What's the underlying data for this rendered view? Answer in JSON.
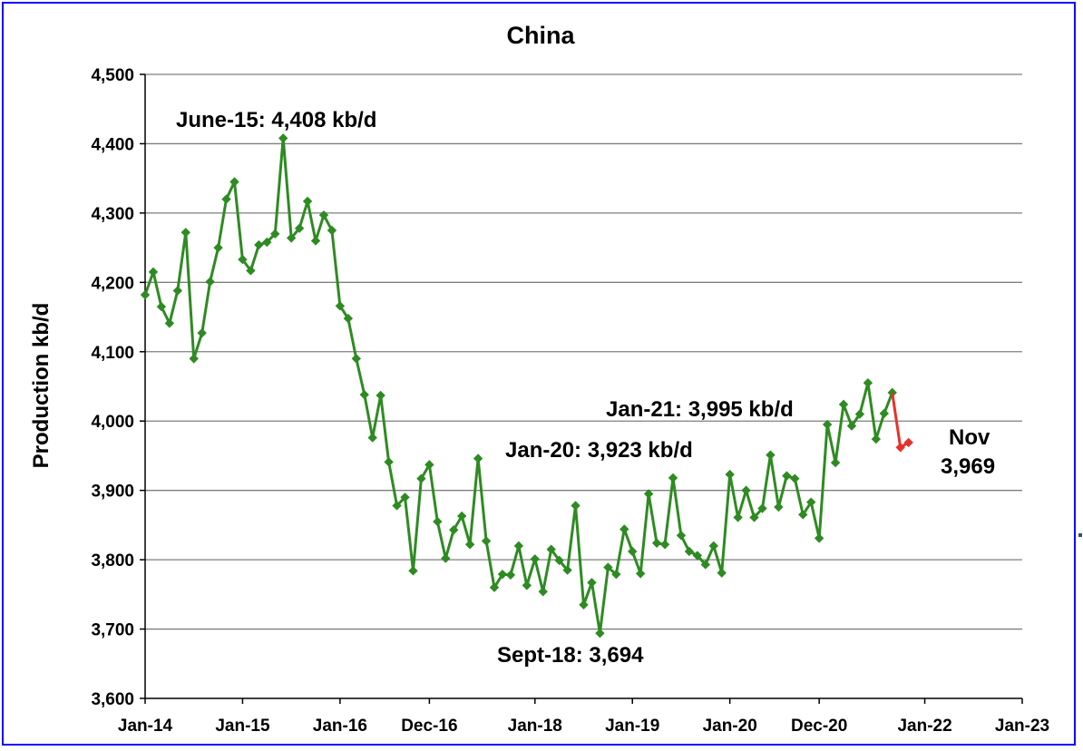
{
  "chart_data": {
    "type": "line",
    "title": "China",
    "ylabel": "Production kb/d",
    "xlabel": "",
    "ylim": [
      3600,
      4500
    ],
    "yticks": [
      3600,
      3700,
      3800,
      3900,
      4000,
      4100,
      4200,
      4300,
      4400,
      4500
    ],
    "ytick_labels": [
      "3,600",
      "3,700",
      "3,800",
      "3,900",
      "4,000",
      "4,100",
      "4,200",
      "4,300",
      "4,400",
      "4,500"
    ],
    "xlim": [
      "2014-01",
      "2023-01"
    ],
    "xticks": [
      "2014-01",
      "2015-01",
      "2016-01",
      "2016-12",
      "2018-01",
      "2019-01",
      "2020-01",
      "2020-12",
      "2022-01",
      "2023-01"
    ],
    "xtick_labels": [
      "Jan-14",
      "Jan-15",
      "Jan-16",
      "Dec-16",
      "Jan-18",
      "Jan-19",
      "Jan-20",
      "Dec-20",
      "Jan-22",
      "Jan-23"
    ],
    "grid": "horizontal",
    "colors": {
      "series": "#2e8b22",
      "recent": "#e8302a",
      "border": "#0a0aff",
      "grid": "#7f7f7f"
    },
    "marker": "diamond",
    "series": [
      {
        "name": "",
        "color": "#2e8b22",
        "start": "2014-01",
        "values": [
          4182,
          4215,
          4165,
          4141,
          4188,
          4272,
          4090,
          4127,
          4201,
          4250,
          4320,
          4345,
          4233,
          4217,
          4254,
          4258,
          4270,
          4408,
          4264,
          4278,
          4317,
          4260,
          4297,
          4275,
          4166,
          4148,
          4090,
          4038,
          3976,
          4037,
          3941,
          3878,
          3890,
          3784,
          3917,
          3937,
          3855,
          3802,
          3843,
          3863,
          3822,
          3946,
          3827,
          3760,
          3779,
          3778,
          3820,
          3763,
          3801,
          3754,
          3815,
          3799,
          3785,
          3878,
          3735,
          3767,
          3694,
          3789,
          3779,
          3844,
          3812,
          3780,
          3895,
          3824,
          3822,
          3918,
          3835,
          3812,
          3806,
          3793,
          3820,
          3781,
          3923,
          3861,
          3900,
          3861,
          3874,
          3951,
          3876,
          3921,
          3917,
          3865,
          3883,
          3831,
          3995,
          3940,
          4024,
          3993,
          4010,
          4055,
          3974,
          4011,
          4041
        ]
      },
      {
        "name": "",
        "color": "#e8302a",
        "start": "2021-09",
        "values": [
          4041,
          3962,
          3969
        ]
      }
    ],
    "annotations": [
      {
        "text": "June-15: 4,408 kb/d",
        "date": "2015-06",
        "value": 4408
      },
      {
        "text": "Jan-21: 3,995 kb/d",
        "date": "2021-01",
        "value": 3995
      },
      {
        "text": "Jan-20: 3,923 kb/d",
        "date": "2020-01",
        "value": 3923
      },
      {
        "text": "Sept-18: 3,694",
        "date": "2018-09",
        "value": 3694
      },
      {
        "text": "Nov",
        "date": "2021-11",
        "value": 3969
      },
      {
        "text": "3,969",
        "date": "2021-11",
        "value": 3969
      }
    ]
  }
}
